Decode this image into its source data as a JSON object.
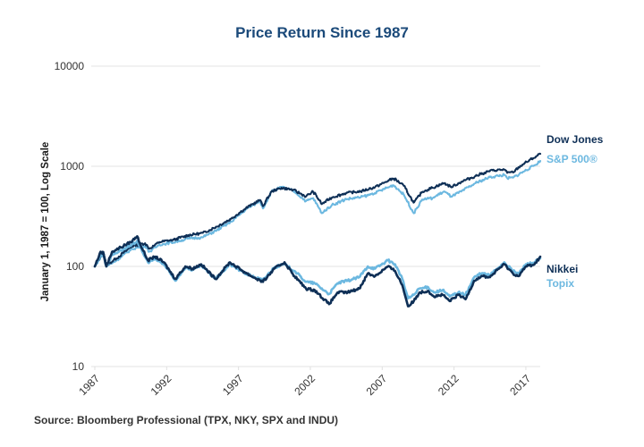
{
  "chart_data": {
    "type": "line",
    "title": "Price Return Since 1987",
    "xlabel": "",
    "ylabel": "January 1, 1987 = 100, Log Scale",
    "yscale": "log",
    "ylim": [
      10,
      10000
    ],
    "xlim": [
      1987,
      2018
    ],
    "yticks": [
      10000,
      1000,
      100,
      10
    ],
    "ytick_labels": [
      "10000",
      "1000",
      "100",
      "10"
    ],
    "xticks": [
      1987,
      1992,
      1997,
      2002,
      2007,
      2012,
      2017
    ],
    "xtick_labels": [
      "1987",
      "1992",
      "1997",
      "2002",
      "2007",
      "2012",
      "2017"
    ],
    "grid": "horizontal",
    "legend_placement": "right (labels at line ends)",
    "source": "Source: Bloomberg Professional (TPX, NKY, SPX and INDU)",
    "series": [
      {
        "name": "Dow Jones",
        "color": "#0e2f56",
        "style": "dotted",
        "x": [
          1987.0,
          1987.6,
          1987.8,
          1988.5,
          1989.6,
          1990.5,
          1990.8,
          1991.5,
          1992.5,
          1993.5,
          1994.5,
          1995.5,
          1996.5,
          1997.5,
          1998.5,
          1998.7,
          1999.3,
          2000.0,
          2000.8,
          2001.7,
          2002.2,
          2002.8,
          2003.5,
          2004.5,
          2005.5,
          2006.5,
          2007.8,
          2008.5,
          2009.2,
          2009.8,
          2010.5,
          2011.3,
          2011.8,
          2012.5,
          2013.5,
          2014.5,
          2015.5,
          2015.7,
          2016.1,
          2016.8,
          2017.5,
          2018.0
        ],
        "values": [
          100,
          140,
          103,
          120,
          160,
          170,
          150,
          175,
          185,
          205,
          215,
          250,
          300,
          380,
          460,
          400,
          560,
          610,
          580,
          500,
          560,
          420,
          490,
          540,
          560,
          620,
          760,
          640,
          430,
          560,
          610,
          680,
          620,
          700,
          800,
          900,
          930,
          860,
          870,
          1050,
          1200,
          1330
        ]
      },
      {
        "name": "S&P 500®",
        "color": "#6cb8e0",
        "style": "dotted",
        "x": [
          1987.0,
          1987.6,
          1987.8,
          1988.5,
          1989.6,
          1990.5,
          1990.8,
          1991.5,
          1992.5,
          1993.5,
          1994.5,
          1995.5,
          1996.5,
          1997.5,
          1998.5,
          1998.7,
          1999.3,
          2000.0,
          2000.8,
          2001.7,
          2002.2,
          2002.8,
          2003.5,
          2004.5,
          2005.5,
          2006.5,
          2007.8,
          2008.5,
          2009.2,
          2009.8,
          2010.5,
          2011.3,
          2011.8,
          2012.5,
          2013.5,
          2014.5,
          2015.5,
          2015.7,
          2016.1,
          2016.8,
          2017.5,
          2018.0
        ],
        "values": [
          100,
          138,
          100,
          115,
          150,
          160,
          140,
          165,
          175,
          190,
          195,
          230,
          280,
          370,
          450,
          380,
          560,
          620,
          570,
          450,
          480,
          340,
          410,
          470,
          490,
          540,
          650,
          520,
          340,
          470,
          480,
          560,
          500,
          560,
          680,
          780,
          820,
          760,
          770,
          880,
          1000,
          1130
        ]
      },
      {
        "name": "Nikkei",
        "color": "#0e2f56",
        "style": "solid",
        "x": [
          1987.0,
          1987.4,
          1987.6,
          1987.8,
          1988.2,
          1988.8,
          1989.5,
          1989.95,
          1990.3,
          1990.7,
          1991.2,
          1991.8,
          1992.6,
          1993.3,
          1993.8,
          1994.4,
          1995.4,
          1996.4,
          1997.3,
          1997.9,
          1998.7,
          1999.5,
          2000.2,
          2000.9,
          2001.7,
          2002.3,
          2003.3,
          2003.9,
          2004.6,
          2005.4,
          2006.0,
          2006.5,
          2007.4,
          2007.9,
          2008.4,
          2008.8,
          2009.2,
          2009.6,
          2010.2,
          2010.6,
          2011.2,
          2011.7,
          2012.3,
          2012.8,
          2013.4,
          2013.9,
          2014.5,
          2015.0,
          2015.5,
          2016.1,
          2016.5,
          2017.0,
          2017.6,
          2018.0
        ],
        "values": [
          100,
          140,
          135,
          100,
          140,
          155,
          175,
          200,
          150,
          115,
          125,
          110,
          75,
          100,
          95,
          105,
          75,
          110,
          90,
          80,
          70,
          95,
          110,
          80,
          60,
          58,
          42,
          55,
          55,
          60,
          85,
          80,
          100,
          90,
          65,
          40,
          45,
          55,
          57,
          50,
          52,
          45,
          52,
          47,
          72,
          80,
          78,
          92,
          105,
          85,
          80,
          100,
          105,
          125
        ]
      },
      {
        "name": "Topix",
        "color": "#6cb8e0",
        "style": "solid",
        "x": [
          1987.0,
          1987.4,
          1987.6,
          1987.8,
          1988.2,
          1988.8,
          1989.5,
          1989.95,
          1990.3,
          1990.7,
          1991.2,
          1991.8,
          1992.6,
          1993.3,
          1993.8,
          1994.4,
          1995.4,
          1996.4,
          1997.3,
          1997.9,
          1998.7,
          1999.5,
          2000.2,
          2000.9,
          2001.7,
          2002.3,
          2003.3,
          2003.9,
          2004.6,
          2005.4,
          2006.0,
          2006.5,
          2007.4,
          2007.9,
          2008.4,
          2008.8,
          2009.2,
          2009.6,
          2010.2,
          2010.6,
          2011.2,
          2011.7,
          2012.3,
          2012.8,
          2013.4,
          2013.9,
          2014.5,
          2015.0,
          2015.5,
          2016.1,
          2016.5,
          2017.0,
          2017.6,
          2018.0
        ],
        "values": [
          100,
          130,
          128,
          100,
          130,
          145,
          160,
          180,
          140,
          110,
          118,
          105,
          72,
          98,
          92,
          102,
          75,
          105,
          88,
          80,
          73,
          98,
          105,
          90,
          70,
          68,
          53,
          68,
          72,
          78,
          100,
          95,
          115,
          105,
          75,
          48,
          52,
          60,
          62,
          55,
          58,
          50,
          55,
          52,
          78,
          85,
          82,
          95,
          110,
          90,
          85,
          105,
          110,
          120
        ]
      }
    ]
  }
}
